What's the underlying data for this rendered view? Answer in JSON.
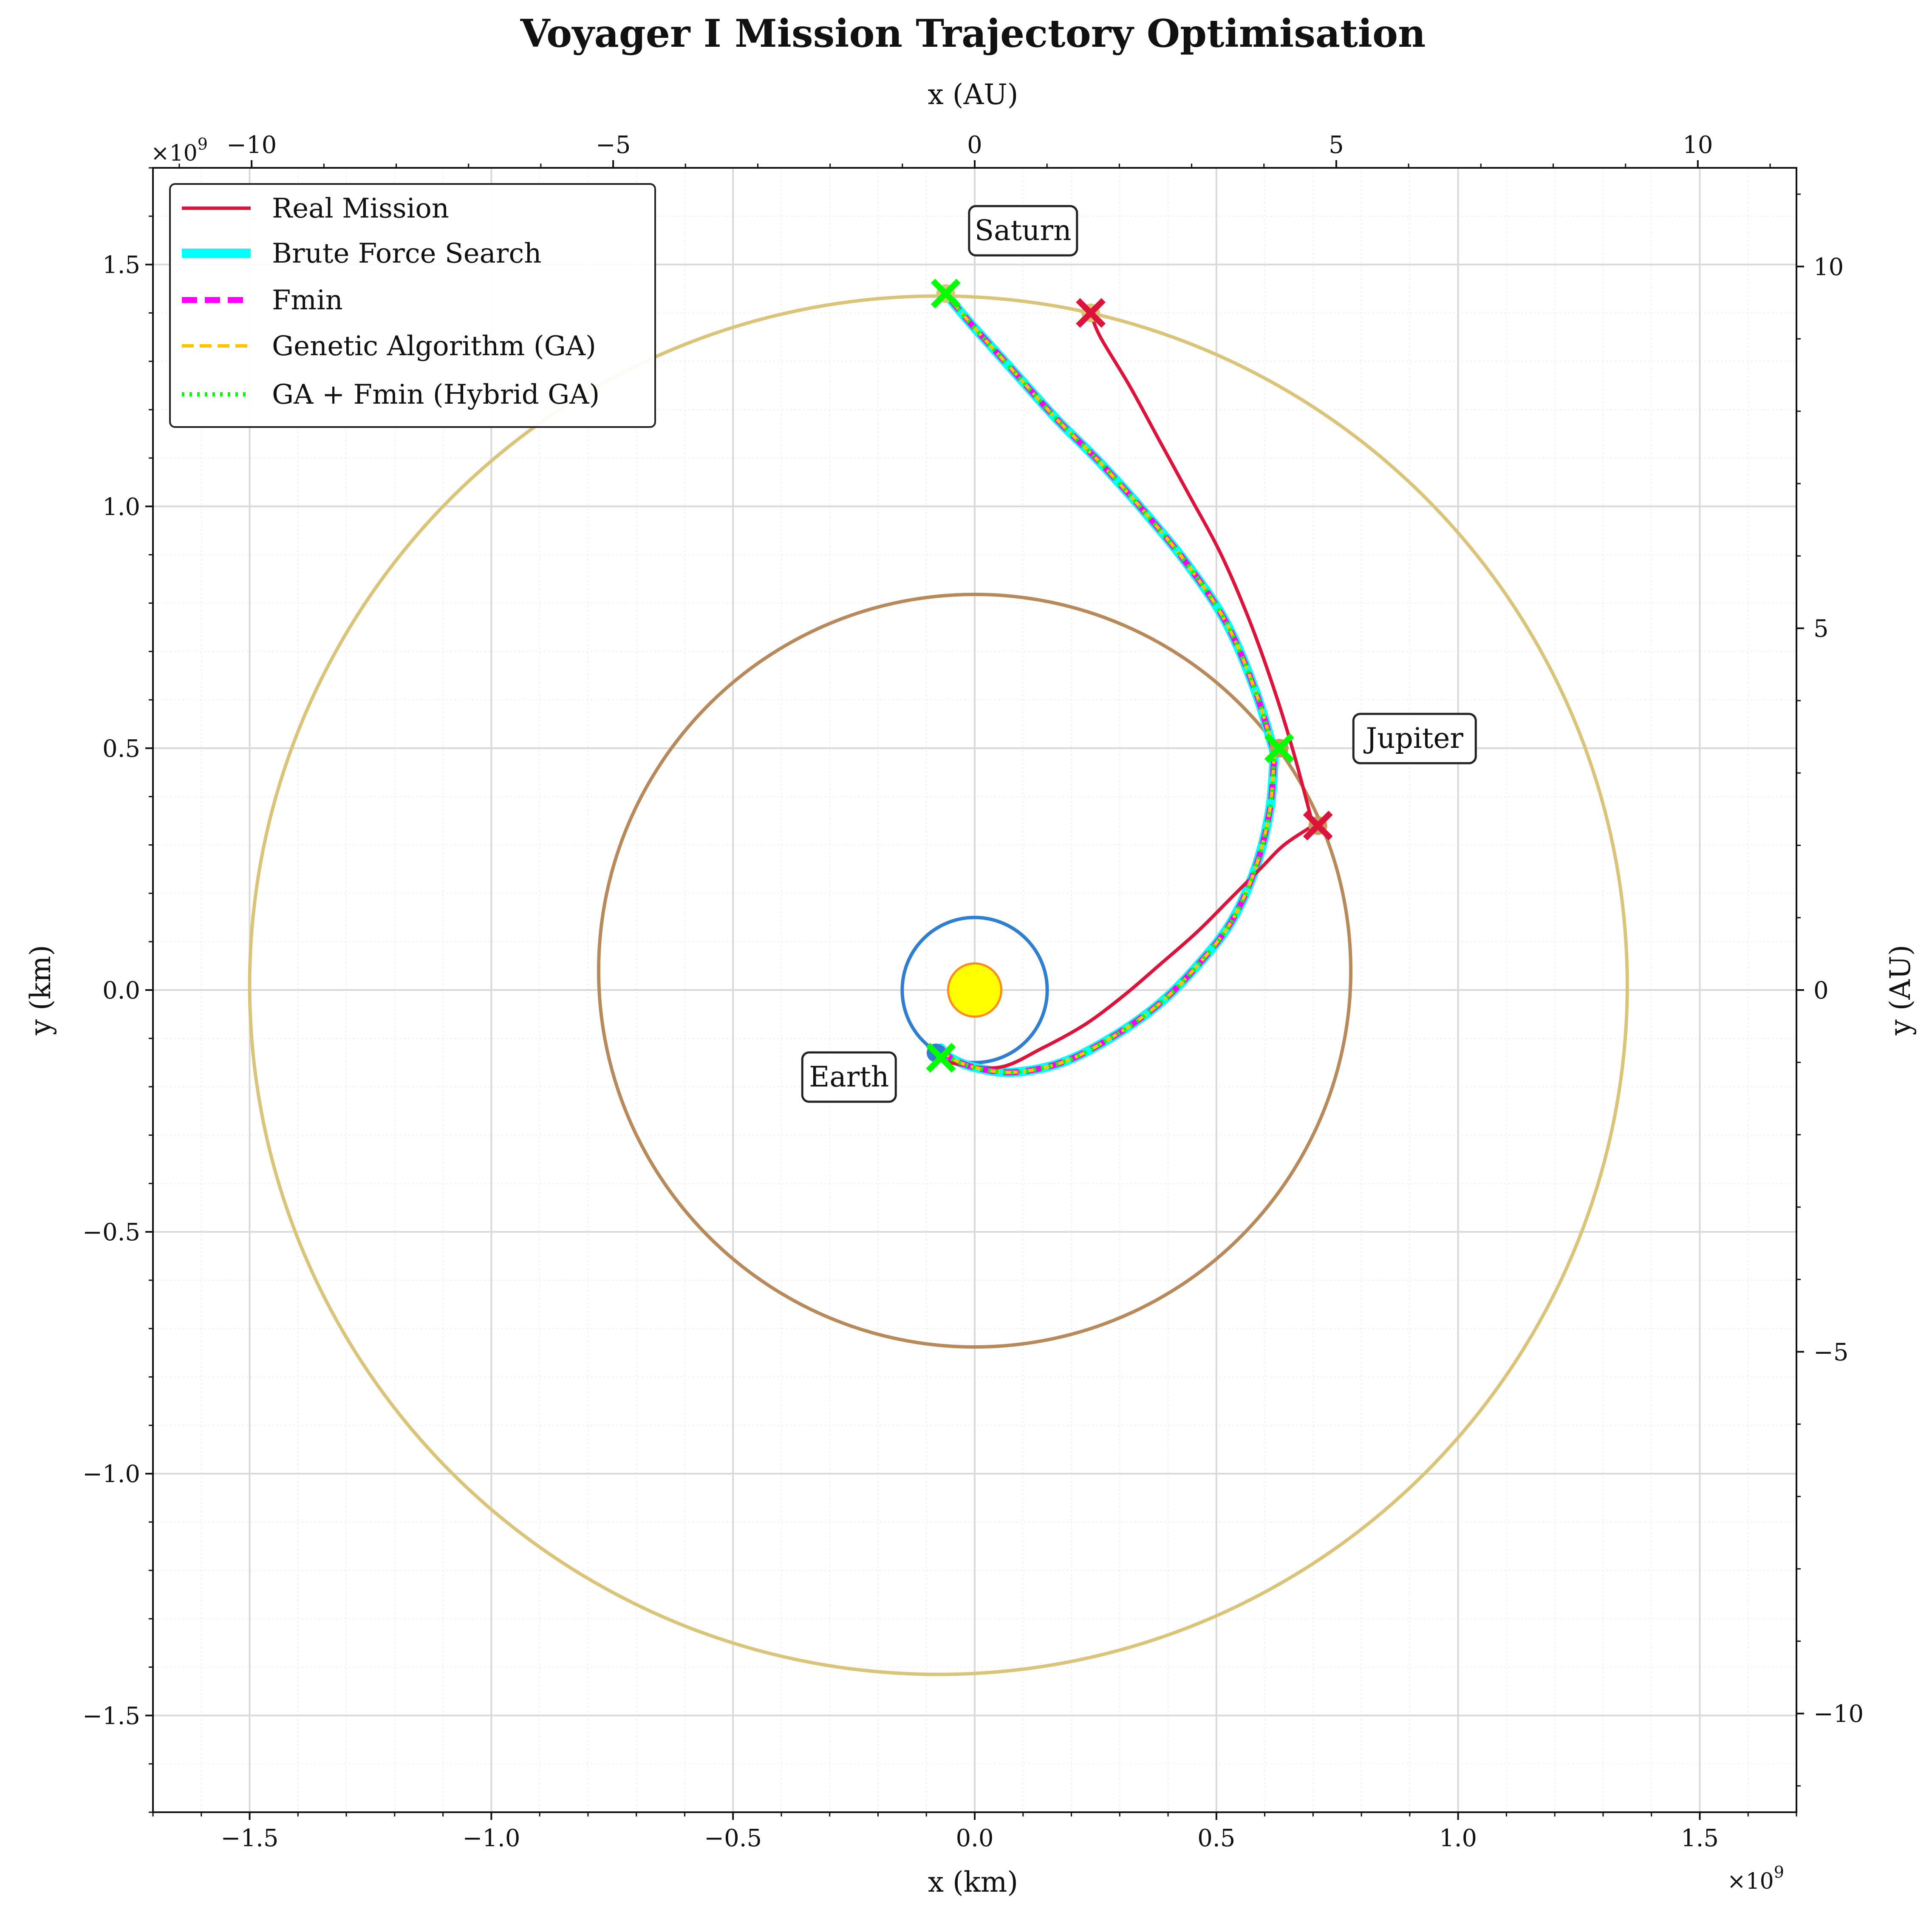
{
  "chart_data": {
    "type": "line",
    "title": "Voyager I Mission Trajectory Optimisation",
    "xlabel": "x (km)",
    "ylabel": "y (km)",
    "x2label": "x (AU)",
    "y2label": "y (AU)",
    "xlim": [
      -1700000000.0,
      1700000000.0
    ],
    "ylim": [
      -1700000000.0,
      1700000000.0
    ],
    "x2lim": [
      -11.364,
      11.364
    ],
    "y2lim": [
      -11.364,
      11.364
    ],
    "x_offset_label": "×10",
    "y_offset_label": "×10",
    "offset_exponent": "9",
    "xticks": [
      -1.5,
      -1.0,
      -0.5,
      0.0,
      0.5,
      1.0,
      1.5
    ],
    "xtick_labels": [
      "−1.5",
      "−1.0",
      "−0.5",
      "0.0",
      "0.5",
      "1.0",
      "1.5"
    ],
    "yticks": [
      -1.5,
      -1.0,
      -0.5,
      0.0,
      0.5,
      1.0,
      1.5
    ],
    "ytick_labels": [
      "−1.5",
      "−1.0",
      "−0.5",
      "0.0",
      "0.5",
      "1.0",
      "1.5"
    ],
    "x2ticks": [
      -10,
      -5,
      0,
      5,
      10
    ],
    "x2tick_labels": [
      "−10",
      "−5",
      "0",
      "5",
      "10"
    ],
    "y2ticks": [
      10,
      5,
      0,
      -5,
      -10
    ],
    "y2tick_labels": [
      "10",
      "5",
      "0",
      "−5",
      "−10"
    ],
    "grid": true,
    "legend_position": "top-left",
    "colors": {
      "real": "#dc143c",
      "brute": "#00ffff",
      "fmin": "#ff00ff",
      "ga": "#ffc400",
      "hybrid": "#00ff00",
      "earth_orbit": "#2f7ed0",
      "jupiter_orbit": "#b8895a",
      "saturn_orbit": "#d9c47a",
      "sun_fill": "#ffff00",
      "sun_edge": "#ff8c1a"
    },
    "orbits": [
      {
        "name": "Earth",
        "cx": 0.0,
        "cy": 0.0,
        "rx": 0.15,
        "ry": 0.15
      },
      {
        "name": "Jupiter",
        "cx": 0.0,
        "cy": 0.04,
        "rx": 0.778,
        "ry": 0.778
      },
      {
        "name": "Saturn",
        "cx": -0.075,
        "cy": 0.01,
        "rx": 1.425,
        "ry": 1.425
      }
    ],
    "sun": {
      "x": 0.0,
      "y": 0.0,
      "r": 0.055
    },
    "series": [
      {
        "name": "Real Mission",
        "x": [
          -0.08,
          -0.05,
          0.05,
          0.14,
          0.23,
          0.31,
          0.38,
          0.46,
          0.53,
          0.59,
          0.64,
          0.7
        ],
        "y": [
          -0.13,
          -0.15,
          -0.16,
          -0.12,
          -0.07,
          -0.01,
          0.05,
          0.12,
          0.19,
          0.25,
          0.3,
          0.34
        ]
      },
      {
        "name": "Brute Force Search",
        "x": [
          -0.07,
          -0.05,
          0.0,
          0.08,
          0.18,
          0.28,
          0.38,
          0.46,
          0.53,
          0.58,
          0.61,
          0.62
        ],
        "y": [
          -0.12,
          -0.14,
          -0.16,
          -0.17,
          -0.15,
          -0.1,
          -0.03,
          0.05,
          0.14,
          0.25,
          0.37,
          0.49
        ]
      },
      {
        "name": "Fmin",
        "x": [
          -0.07,
          -0.05,
          0.0,
          0.08,
          0.18,
          0.28,
          0.38,
          0.46,
          0.53,
          0.58,
          0.61,
          0.62
        ],
        "y": [
          -0.12,
          -0.14,
          -0.16,
          -0.17,
          -0.15,
          -0.1,
          -0.03,
          0.05,
          0.14,
          0.25,
          0.37,
          0.49
        ]
      },
      {
        "name": "Genetic Algorithm (GA)",
        "x": [
          -0.07,
          -0.05,
          0.0,
          0.08,
          0.18,
          0.28,
          0.38,
          0.46,
          0.53,
          0.58,
          0.61,
          0.62
        ],
        "y": [
          -0.12,
          -0.14,
          -0.16,
          -0.17,
          -0.15,
          -0.1,
          -0.03,
          0.05,
          0.14,
          0.25,
          0.37,
          0.49
        ]
      },
      {
        "name": "GA + Fmin (Hybrid GA)",
        "x": [
          -0.07,
          -0.05,
          0.0,
          0.08,
          0.18,
          0.28,
          0.38,
          0.46,
          0.53,
          0.58,
          0.61,
          0.62
        ],
        "y": [
          -0.12,
          -0.14,
          -0.16,
          -0.17,
          -0.15,
          -0.1,
          -0.03,
          0.05,
          0.14,
          0.25,
          0.37,
          0.49
        ]
      }
    ],
    "second_legs": [
      {
        "name": "Real Mission",
        "x": [
          0.7,
          0.66,
          0.62,
          0.57,
          0.51,
          0.44,
          0.38,
          0.32,
          0.26,
          0.24
        ],
        "y": [
          0.34,
          0.49,
          0.62,
          0.76,
          0.9,
          1.03,
          1.14,
          1.25,
          1.35,
          1.4
        ]
      },
      {
        "name": "Brute Force Search",
        "x": [
          0.62,
          0.58,
          0.52,
          0.44,
          0.35,
          0.26,
          0.17,
          0.08,
          -0.01,
          -0.06
        ],
        "y": [
          0.49,
          0.62,
          0.76,
          0.88,
          0.99,
          1.09,
          1.18,
          1.28,
          1.38,
          1.44
        ]
      },
      {
        "name": "Fmin",
        "x": [
          0.62,
          0.58,
          0.52,
          0.44,
          0.35,
          0.26,
          0.17,
          0.08,
          -0.01,
          -0.06
        ],
        "y": [
          0.49,
          0.62,
          0.76,
          0.88,
          0.99,
          1.09,
          1.18,
          1.28,
          1.38,
          1.44
        ]
      },
      {
        "name": "Genetic Algorithm (GA)",
        "x": [
          0.62,
          0.58,
          0.52,
          0.44,
          0.35,
          0.26,
          0.17,
          0.08,
          -0.01,
          -0.06
        ],
        "y": [
          0.49,
          0.62,
          0.76,
          0.88,
          0.99,
          1.09,
          1.18,
          1.28,
          1.38,
          1.44
        ]
      },
      {
        "name": "GA + Fmin (Hybrid GA)",
        "x": [
          0.62,
          0.58,
          0.52,
          0.44,
          0.35,
          0.26,
          0.17,
          0.08,
          -0.01,
          -0.06
        ],
        "y": [
          0.49,
          0.62,
          0.76,
          0.88,
          0.99,
          1.09,
          1.18,
          1.28,
          1.38,
          1.44
        ]
      }
    ],
    "markers": [
      {
        "kind": "real",
        "x": -0.07,
        "y": -0.14
      },
      {
        "kind": "real",
        "x": 0.71,
        "y": 0.34
      },
      {
        "kind": "real",
        "x": 0.24,
        "y": 1.4
      },
      {
        "kind": "opt",
        "x": -0.07,
        "y": -0.14
      },
      {
        "kind": "opt",
        "x": 0.63,
        "y": 0.5
      },
      {
        "kind": "opt",
        "x": -0.06,
        "y": 1.44
      }
    ],
    "planet_dots": [
      {
        "name": "Earth",
        "x": -0.08,
        "y": -0.13,
        "color": "#2f7ed0"
      },
      {
        "name": "Jupiter",
        "x": 0.63,
        "y": 0.5,
        "color": "#c79a5a"
      },
      {
        "name": "Jupiter",
        "x": 0.71,
        "y": 0.34,
        "color": "#c79a5a"
      },
      {
        "name": "Saturn",
        "x": -0.06,
        "y": 1.44,
        "color": "#d9c47a"
      },
      {
        "name": "Saturn",
        "x": 0.24,
        "y": 1.4,
        "color": "#d9c47a"
      }
    ],
    "annotations": [
      {
        "text": "Saturn",
        "x": 0.1,
        "y": 1.57
      },
      {
        "text": "Jupiter",
        "x": 0.91,
        "y": 0.52
      },
      {
        "text": "Earth",
        "x": -0.26,
        "y": -0.18
      }
    ]
  }
}
